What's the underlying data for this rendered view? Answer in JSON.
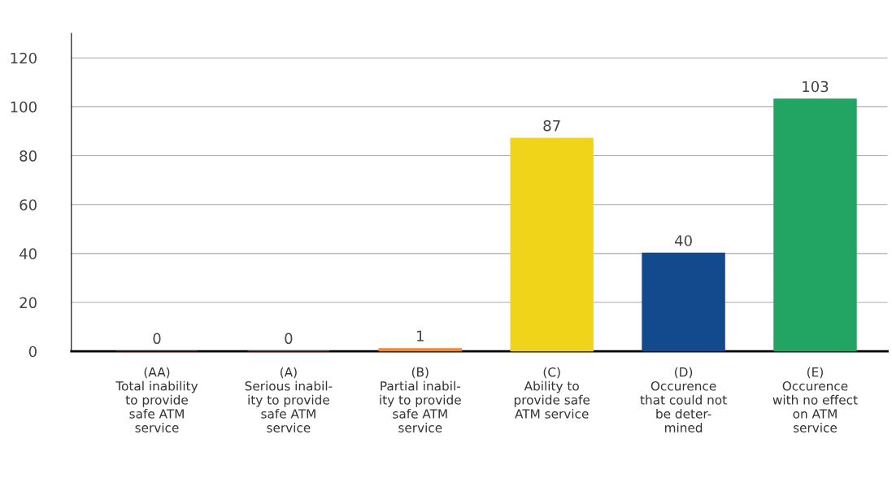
{
  "chart_data": {
    "type": "bar",
    "categories": [
      "(AA)\nTotal inability\nto provide\nsafe ATM\nservice",
      "(A)\nSerious inabil-\nity to provide\nsafe ATM\nservice",
      "(B)\nPartial inabil-\nity to provide\nsafe ATM\nservice",
      "(C)\nAbility to\nprovide safe\nATM service",
      "(D)\nOccurence\nthat could not\nbe deter-\nmined",
      "(E)\nOccurence\nwith no effect\non ATM\nservice"
    ],
    "values": [
      0,
      0,
      1,
      87,
      40,
      103
    ],
    "colors": [
      "#8b1c1c",
      "#e3262a",
      "#f08a30",
      "#f0d419",
      "#134a8e",
      "#22a562"
    ],
    "ylim": [
      0,
      130
    ],
    "yticks": [
      0,
      20,
      40,
      60,
      80,
      100,
      120
    ],
    "grid": "y",
    "data_labels": true,
    "legend": false
  }
}
